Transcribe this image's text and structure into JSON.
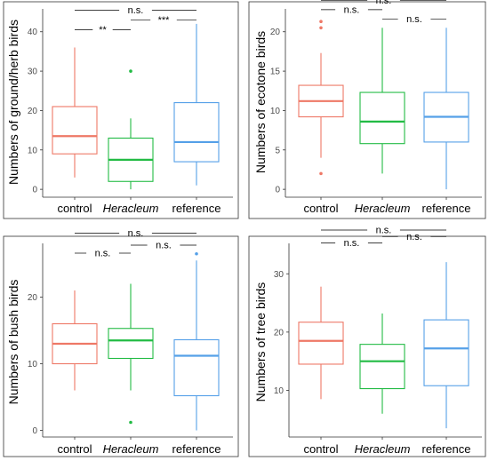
{
  "chart_data": [
    {
      "type": "boxplot",
      "ylabel": "Numbers of ground/herb birds",
      "categories": [
        "control",
        "Heracleum",
        "reference"
      ],
      "ylim": [
        -2,
        44
      ],
      "yticks": [
        0,
        10,
        20,
        30,
        40
      ],
      "boxes": [
        {
          "category": "control",
          "color": "#ee7866",
          "whisker_low": 3,
          "q1": 9,
          "median": 13.5,
          "q3": 21,
          "whisker_high": 36,
          "outliers": []
        },
        {
          "category": "Heracleum",
          "color": "#22bb44",
          "whisker_low": 0,
          "q1": 2,
          "median": 7.5,
          "q3": 13,
          "whisker_high": 18,
          "outliers": [
            30
          ]
        },
        {
          "category": "reference",
          "color": "#55a0e8",
          "whisker_low": 1,
          "q1": 7,
          "median": 12,
          "q3": 22,
          "whisker_high": 42,
          "outliers": []
        }
      ],
      "comparisons": [
        {
          "from": 0,
          "to": 2,
          "label": "n.s.",
          "y": 45.5
        },
        {
          "from": 0,
          "to": 1,
          "label": "**",
          "y": 40.5
        },
        {
          "from": 1,
          "to": 2,
          "label": "***",
          "y": 43
        }
      ]
    },
    {
      "type": "boxplot",
      "ylabel": "Numbers of ecotone birds",
      "categories": [
        "control",
        "Heracleum",
        "reference"
      ],
      "ylim": [
        -1,
        22
      ],
      "yticks": [
        0,
        5,
        10,
        15,
        20
      ],
      "boxes": [
        {
          "category": "control",
          "color": "#ee7866",
          "whisker_low": 4,
          "q1": 9.2,
          "median": 11.2,
          "q3": 13.2,
          "whisker_high": 17.3,
          "outliers": [
            2,
            20.5,
            21.3
          ]
        },
        {
          "category": "Heracleum",
          "color": "#22bb44",
          "whisker_low": 2,
          "q1": 5.8,
          "median": 8.6,
          "q3": 12.3,
          "whisker_high": 20.5,
          "outliers": []
        },
        {
          "category": "reference",
          "color": "#55a0e8",
          "whisker_low": 0,
          "q1": 6,
          "median": 9.2,
          "q3": 12.3,
          "whisker_high": 20.5,
          "outliers": []
        }
      ],
      "comparisons": [
        {
          "from": 0,
          "to": 2,
          "label": "n.s.",
          "y": 24
        },
        {
          "from": 0,
          "to": 1,
          "label": "n.s.",
          "y": 22.8
        },
        {
          "from": 1,
          "to": 2,
          "label": "n.s.",
          "y": 21.6
        }
      ]
    },
    {
      "type": "boxplot",
      "ylabel": "Numbers of bush birds",
      "categories": [
        "control",
        "Heracleum",
        "reference"
      ],
      "ylim": [
        -1,
        27
      ],
      "yticks": [
        0,
        10,
        20
      ],
      "boxes": [
        {
          "category": "control",
          "color": "#ee7866",
          "whisker_low": 6,
          "q1": 10,
          "median": 13,
          "q3": 16,
          "whisker_high": 21,
          "outliers": []
        },
        {
          "category": "Heracleum",
          "color": "#22bb44",
          "whisker_low": 6,
          "q1": 10.8,
          "median": 13.5,
          "q3": 15.3,
          "whisker_high": 22,
          "outliers": [
            1.2
          ]
        },
        {
          "category": "reference",
          "color": "#55a0e8",
          "whisker_low": 0,
          "q1": 5.2,
          "median": 11.2,
          "q3": 13.6,
          "whisker_high": 25.5,
          "outliers": [
            26.5
          ]
        }
      ],
      "comparisons": [
        {
          "from": 0,
          "to": 2,
          "label": "n.s.",
          "y": 29.6
        },
        {
          "from": 0,
          "to": 1,
          "label": "n.s.",
          "y": 26.6
        },
        {
          "from": 1,
          "to": 2,
          "label": "n.s.",
          "y": 27.8
        }
      ]
    },
    {
      "type": "boxplot",
      "ylabel": "Numbers of tree birds",
      "categories": [
        "control",
        "Heracleum",
        "reference"
      ],
      "ylim": [
        2,
        34
      ],
      "yticks": [
        10,
        20,
        30
      ],
      "boxes": [
        {
          "category": "control",
          "color": "#ee7866",
          "whisker_low": 8.5,
          "q1": 14.5,
          "median": 18.5,
          "q3": 21.7,
          "whisker_high": 27.8,
          "outliers": []
        },
        {
          "category": "Heracleum",
          "color": "#22bb44",
          "whisker_low": 6,
          "q1": 10.3,
          "median": 15,
          "q3": 17.9,
          "whisker_high": 23.2,
          "outliers": []
        },
        {
          "category": "reference",
          "color": "#55a0e8",
          "whisker_low": 3.5,
          "q1": 10.8,
          "median": 17.2,
          "q3": 22.1,
          "whisker_high": 32,
          "outliers": []
        }
      ],
      "comparisons": [
        {
          "from": 0,
          "to": 2,
          "label": "n.s.",
          "y": 37.5
        },
        {
          "from": 0,
          "to": 1,
          "label": "n.s.",
          "y": 35.3
        },
        {
          "from": 1,
          "to": 2,
          "label": "n.s.",
          "y": 36.4
        }
      ]
    }
  ]
}
